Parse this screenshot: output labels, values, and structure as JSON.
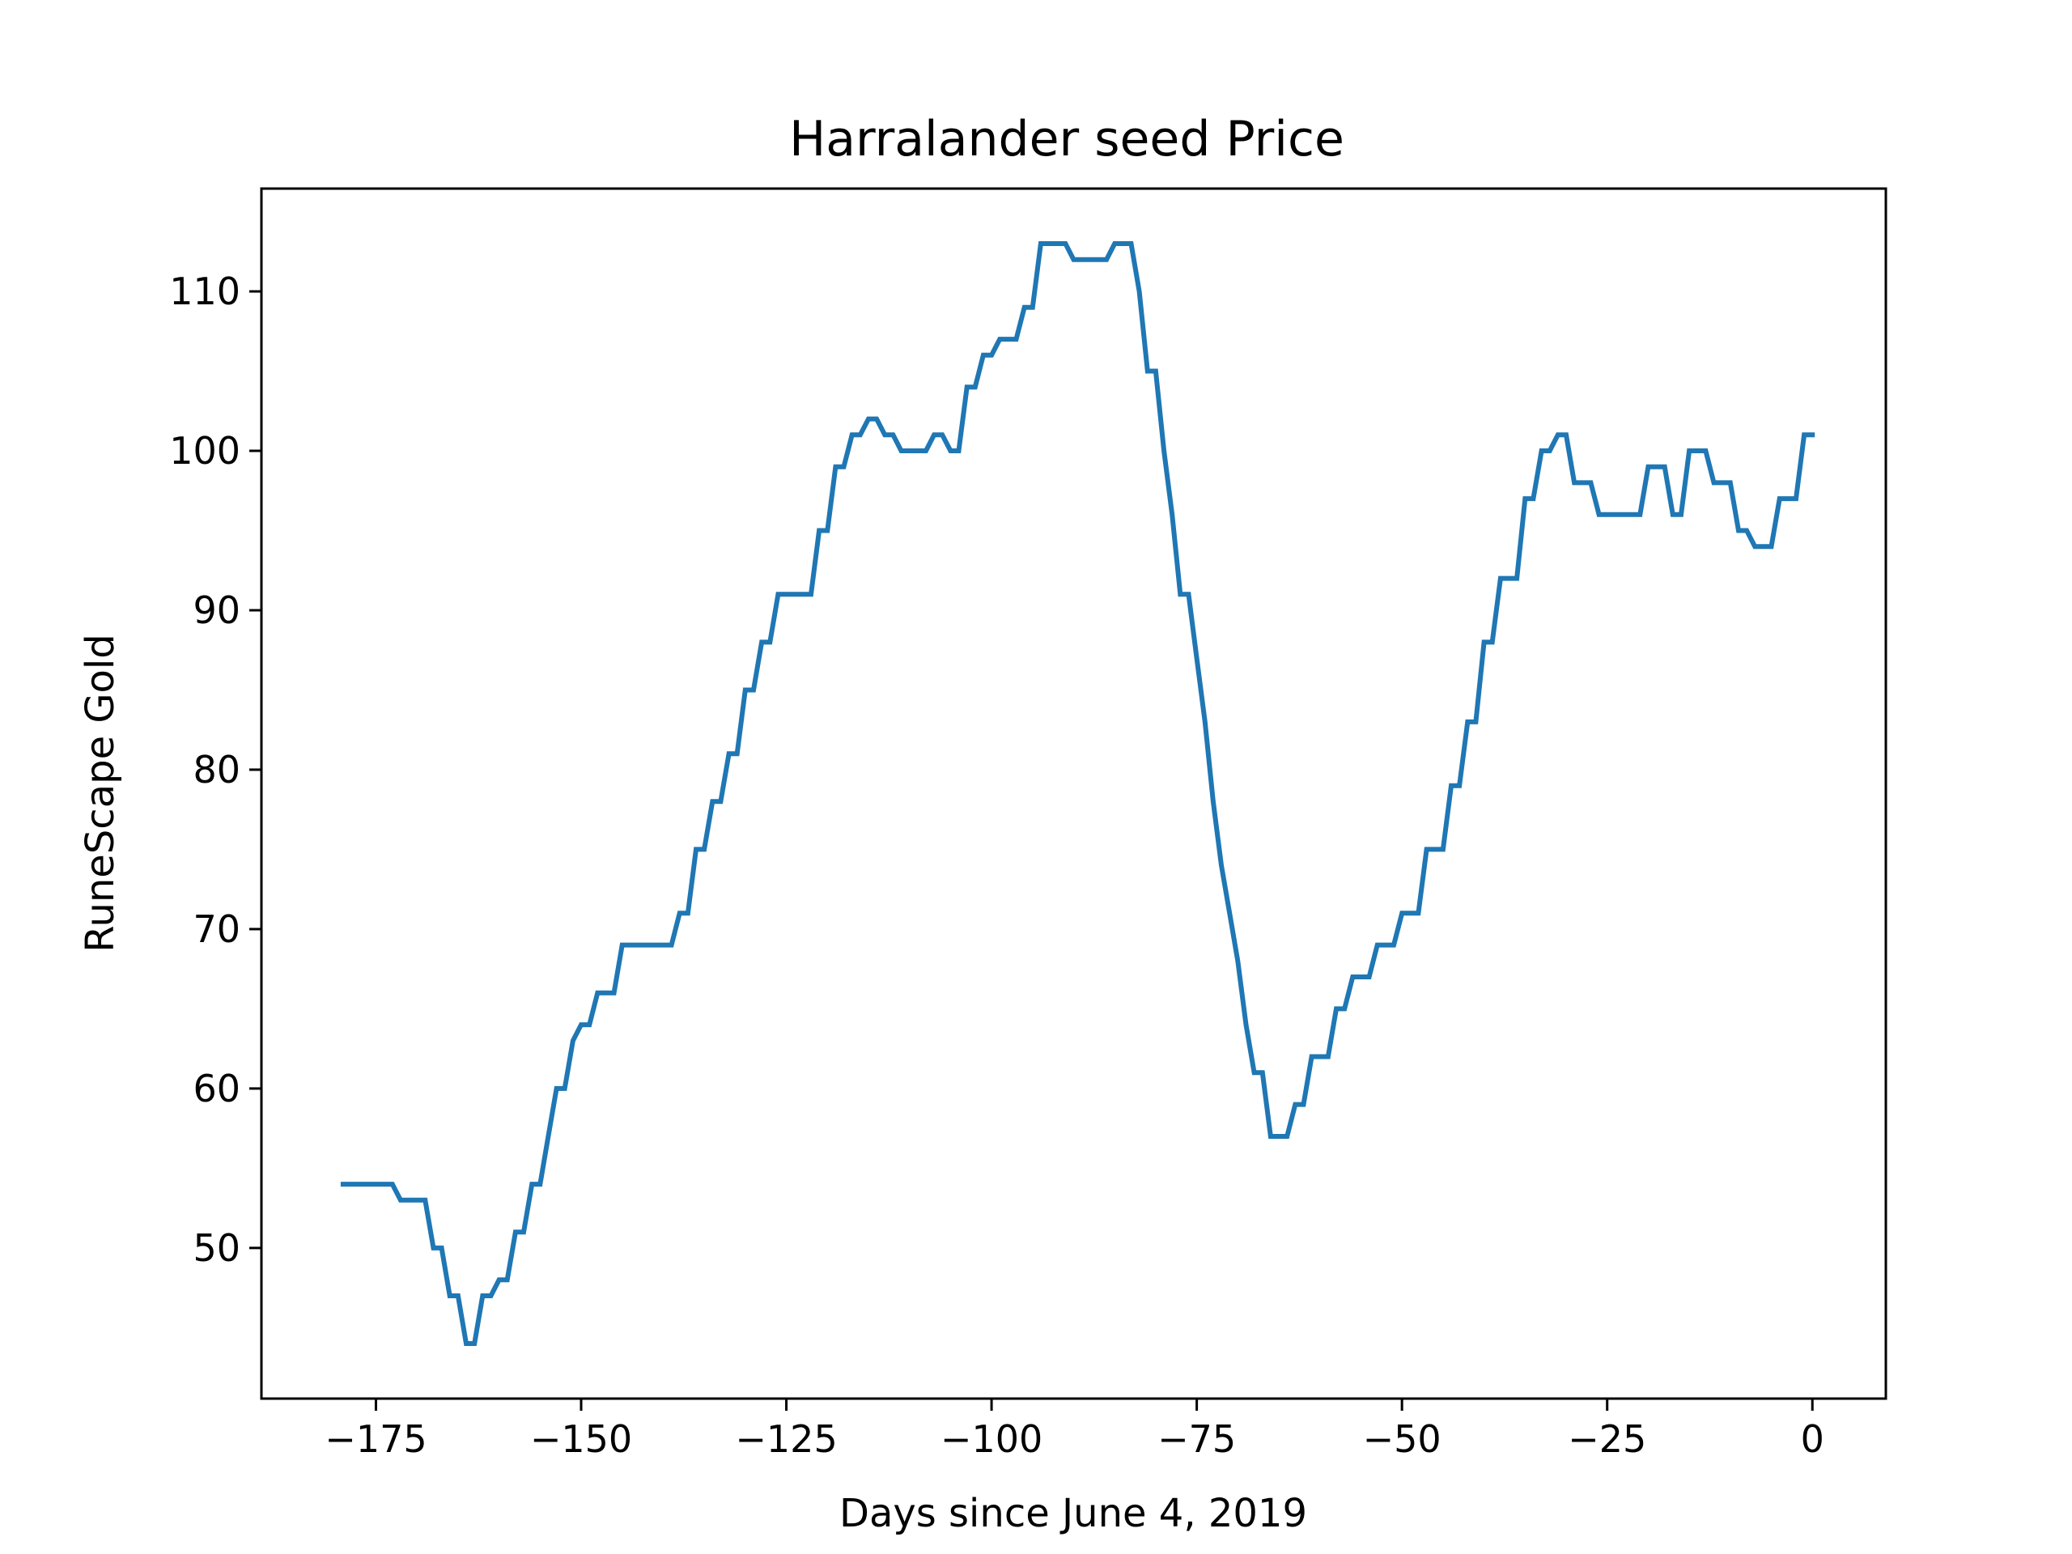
{
  "chart_data": {
    "type": "line",
    "title": "Harralander seed Price",
    "xlabel": "Days since June 4, 2019",
    "ylabel": "RuneScape Gold",
    "xlim": [
      -188.95,
      8.95
    ],
    "ylim": [
      40.55,
      116.45
    ],
    "xticks": [
      -175,
      -150,
      -125,
      -100,
      -75,
      -50,
      -25,
      0
    ],
    "xtick_labels": [
      "−175",
      "−150",
      "−125",
      "−100",
      "−75",
      "−50",
      "−25",
      "0"
    ],
    "yticks": [
      50,
      60,
      70,
      80,
      90,
      100,
      110
    ],
    "ytick_labels": [
      "50",
      "60",
      "70",
      "80",
      "90",
      "100",
      "110"
    ],
    "grid": false,
    "line_color": "#1f77b4",
    "series": [
      {
        "x": [
          -179,
          -173,
          -172,
          -169,
          -168,
          -167,
          -166,
          -165,
          -164,
          -163,
          -162,
          -161,
          -160,
          -159,
          -158,
          -157,
          -156,
          -155,
          -154,
          -153,
          -152,
          -151,
          -150,
          -149,
          -148,
          -147,
          -146,
          -145,
          -144,
          -141,
          -140,
          -139,
          -138,
          -137,
          -136,
          -135,
          -134,
          -133,
          -132,
          -131,
          -130,
          -129,
          -128,
          -127,
          -126,
          -125,
          -122,
          -121,
          -120,
          -119,
          -118,
          -117,
          -116,
          -115,
          -114,
          -113,
          -112,
          -111,
          -109,
          -108,
          -107,
          -106,
          -105,
          -104,
          -103,
          -102,
          -101,
          -100,
          -99,
          -98,
          -97,
          -96,
          -95,
          -94,
          -93,
          -91,
          -90,
          -89,
          -88,
          -86,
          -85,
          -84,
          -83,
          -82,
          -81,
          -80,
          -79,
          -78,
          -77,
          -76,
          -75,
          -74,
          -73,
          -72,
          -71,
          -70,
          -69,
          -68,
          -67,
          -66,
          -65,
          -64,
          -63,
          -62,
          -61,
          -60,
          -59,
          -58,
          -57,
          -56,
          -55,
          -54,
          -53,
          -52,
          -51,
          -50,
          -49,
          -48,
          -47,
          -46,
          -45,
          -44,
          -43,
          -42,
          -41,
          -40,
          -39,
          -38,
          -37,
          -36,
          -35,
          -34,
          -33,
          -32,
          -31,
          -30,
          -29,
          -28,
          -27,
          -26,
          -25,
          -24,
          -21,
          -20,
          -19,
          -18,
          -17,
          -16,
          -15,
          -14,
          -13,
          -12,
          -11,
          -10,
          -9,
          -8,
          -7,
          -6,
          -5,
          -4,
          -3,
          -2,
          -1,
          0
        ],
        "y": [
          54,
          54,
          53,
          53,
          50,
          50,
          47,
          47,
          44,
          44,
          47,
          47,
          48,
          48,
          51,
          51,
          54,
          54,
          57,
          60,
          60,
          63,
          64,
          64,
          66,
          66,
          66,
          69,
          69,
          69,
          69,
          69,
          71,
          71,
          75,
          75,
          78,
          78,
          81,
          81,
          85,
          85,
          88,
          88,
          91,
          91,
          91,
          95,
          95,
          99,
          99,
          101,
          101,
          102,
          102,
          101,
          101,
          100,
          100,
          100,
          101,
          101,
          100,
          100,
          104,
          104,
          106,
          106,
          107,
          107,
          107,
          109,
          109,
          113,
          113,
          113,
          112,
          112,
          112,
          112,
          113,
          113,
          113,
          110,
          105,
          105,
          100,
          96,
          91,
          91,
          87,
          83,
          78,
          74,
          71,
          68,
          64,
          61,
          61,
          57,
          57,
          57,
          59,
          59,
          62,
          62,
          62,
          65,
          65,
          67,
          67,
          67,
          69,
          69,
          69,
          71,
          71,
          71,
          75,
          75,
          75,
          79,
          79,
          83,
          83,
          88,
          88,
          92,
          92,
          92,
          97,
          97,
          100,
          100,
          101,
          101,
          98,
          98,
          98,
          96,
          96,
          96,
          96,
          99,
          99,
          99,
          96,
          96,
          100,
          100,
          100,
          98,
          98,
          98,
          95,
          95,
          94,
          94,
          94,
          97,
          97,
          97,
          101,
          101
        ]
      }
    ]
  }
}
